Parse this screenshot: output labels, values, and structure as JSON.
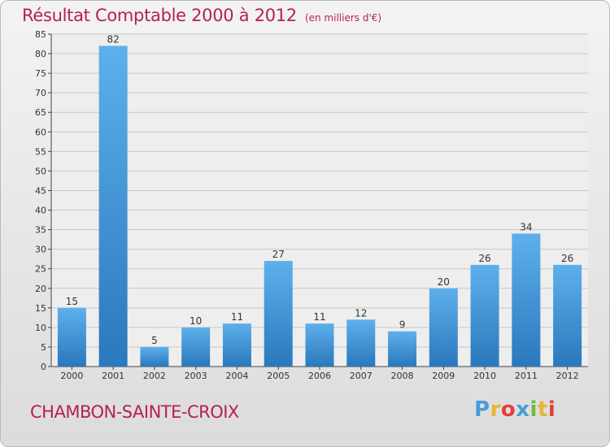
{
  "title": "Résultat Comptable 2000 à 2012",
  "subtitle": "(en milliers d'€)",
  "commune": "CHAMBON-SAINTE-CROIX",
  "logo": {
    "text": "Proxiti",
    "colors": [
      "#4a9bd8",
      "#e8b531",
      "#e2403d",
      "#4a9bd8",
      "#6bbd3e",
      "#e8b531",
      "#e2403d"
    ]
  },
  "colors": {
    "bar_light": "#5eb0ec",
    "bar_dark": "#2a78bd",
    "accent": "#b5205a",
    "grid": "#c8c8c8"
  },
  "chart_data": {
    "type": "bar",
    "title": "Résultat Comptable 2000 à 2012",
    "subtitle": "(en milliers d'€)",
    "xlabel": "",
    "ylabel": "",
    "categories": [
      "2000",
      "2001",
      "2002",
      "2003",
      "2004",
      "2005",
      "2006",
      "2007",
      "2008",
      "2009",
      "2010",
      "2011",
      "2012"
    ],
    "values": [
      15,
      82,
      5,
      10,
      11,
      27,
      11,
      12,
      9,
      20,
      26,
      34,
      26
    ],
    "ylim": [
      0,
      85
    ],
    "yticks": [
      0,
      5,
      10,
      15,
      20,
      25,
      30,
      35,
      40,
      45,
      50,
      55,
      60,
      65,
      70,
      75,
      80,
      85
    ],
    "grid": true,
    "data_labels": true,
    "legend": "none"
  }
}
